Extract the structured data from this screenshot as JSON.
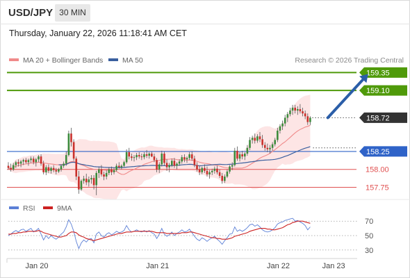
{
  "header": {
    "symbol": "USD/JPY",
    "timeframe": "30 MIN",
    "timestamp": "Thursday, January 22, 2026 11:18:41 AM CET"
  },
  "colors": {
    "ma20": "#f08a8a",
    "ma50": "#3a5f9e",
    "band_fill": "#fde2e2",
    "resistance": "#4f9a0a",
    "support_blue": "#2f63c8",
    "support_red": "#e05050",
    "up_candle": "#3c8b3c",
    "down_candle": "#c9302c",
    "rsi": "#5b7fd6",
    "rsi_ma": "#cc2222",
    "arrow": "#2b5ea8",
    "price_badge": "#333333"
  },
  "chart_data": [
    {
      "type": "candlestick",
      "legend": [
        {
          "name": "MA 20 + Bollinger Bands",
          "color": "#f08a8a"
        },
        {
          "name": "MA 50",
          "color": "#3a5f9e"
        }
      ],
      "watermark": "Research © 2026 Trading Central",
      "ylim": [
        157.6,
        159.47
      ],
      "x_labels": [
        {
          "label": "Jan 20",
          "index": 8
        },
        {
          "label": "Jan 21",
          "index": 56
        },
        {
          "label": "Jan 22",
          "index": 104
        },
        {
          "label": "Jan 23",
          "index": 126
        }
      ],
      "levels": [
        {
          "value": 159.35,
          "label": "159.35",
          "style": "green",
          "badge": true
        },
        {
          "value": 159.1,
          "label": "159.10",
          "style": "green",
          "badge": true
        },
        {
          "value": 158.72,
          "label": "158.72",
          "style": "current",
          "badge": true
        },
        {
          "value": 158.25,
          "label": "158.25",
          "style": "blue",
          "badge": true
        },
        {
          "value": 158.0,
          "label": "158.00",
          "style": "red",
          "badge": false
        },
        {
          "value": 157.75,
          "label": "157.75",
          "style": "red",
          "badge": false
        }
      ],
      "candles": [
        [
          158.05,
          158.1,
          158.0,
          158.02
        ],
        [
          158.02,
          158.08,
          157.97,
          158.0
        ],
        [
          158.0,
          158.09,
          157.98,
          158.06
        ],
        [
          158.06,
          158.12,
          158.02,
          158.1
        ],
        [
          158.1,
          158.14,
          158.04,
          158.08
        ],
        [
          158.08,
          158.13,
          158.03,
          158.11
        ],
        [
          158.11,
          158.15,
          158.06,
          158.13
        ],
        [
          158.13,
          158.16,
          158.08,
          158.1
        ],
        [
          158.1,
          158.15,
          158.05,
          158.13
        ],
        [
          158.13,
          158.18,
          158.09,
          158.15
        ],
        [
          158.15,
          158.18,
          158.07,
          158.1
        ],
        [
          158.1,
          158.16,
          158.04,
          158.14
        ],
        [
          158.14,
          158.2,
          158.1,
          158.18
        ],
        [
          158.18,
          158.21,
          158.05,
          158.08
        ],
        [
          158.08,
          158.12,
          157.93,
          157.96
        ],
        [
          157.96,
          158.06,
          157.92,
          158.03
        ],
        [
          158.03,
          158.07,
          157.95,
          157.98
        ],
        [
          157.98,
          158.04,
          157.94,
          158.02
        ],
        [
          158.02,
          158.06,
          157.96,
          157.99
        ],
        [
          157.99,
          158.02,
          157.93,
          157.97
        ],
        [
          157.97,
          158.02,
          157.95,
          158.0
        ],
        [
          158.0,
          158.07,
          157.97,
          158.05
        ],
        [
          158.05,
          158.11,
          158.02,
          158.08
        ],
        [
          158.08,
          158.25,
          158.05,
          158.2
        ],
        [
          158.2,
          158.54,
          158.18,
          158.5
        ],
        [
          158.5,
          158.58,
          158.32,
          158.38
        ],
        [
          158.38,
          158.42,
          158.12,
          158.15
        ],
        [
          158.15,
          158.18,
          157.85,
          157.9
        ],
        [
          157.9,
          157.98,
          157.66,
          157.72
        ],
        [
          157.72,
          157.86,
          157.7,
          157.84
        ],
        [
          157.84,
          157.91,
          157.8,
          157.87
        ],
        [
          157.87,
          157.94,
          157.78,
          157.82
        ],
        [
          157.82,
          157.9,
          157.76,
          157.86
        ],
        [
          157.86,
          157.92,
          157.8,
          157.88
        ],
        [
          157.88,
          157.92,
          157.72,
          157.78
        ],
        [
          157.78,
          157.98,
          157.64,
          157.95
        ],
        [
          157.95,
          158.03,
          157.88,
          158.0
        ],
        [
          158.0,
          158.06,
          157.9,
          157.93
        ],
        [
          157.93,
          157.97,
          157.85,
          157.9
        ],
        [
          157.9,
          157.99,
          157.86,
          157.95
        ],
        [
          157.95,
          158.03,
          157.92,
          158.0
        ],
        [
          158.0,
          158.04,
          157.92,
          157.96
        ],
        [
          157.96,
          158.02,
          157.93,
          157.99
        ],
        [
          157.99,
          158.08,
          157.97,
          158.05
        ],
        [
          158.05,
          158.1,
          158.01,
          158.03
        ],
        [
          158.03,
          158.07,
          158.0,
          158.05
        ],
        [
          158.05,
          158.12,
          158.03,
          158.1
        ],
        [
          158.1,
          158.28,
          158.08,
          158.24
        ],
        [
          158.24,
          158.3,
          158.14,
          158.18
        ],
        [
          158.18,
          158.22,
          158.12,
          158.16
        ],
        [
          158.16,
          158.2,
          158.11,
          158.17
        ],
        [
          158.17,
          158.23,
          158.13,
          158.2
        ],
        [
          158.2,
          158.24,
          158.15,
          158.18
        ],
        [
          158.18,
          158.22,
          158.13,
          158.17
        ],
        [
          158.17,
          158.24,
          158.14,
          158.21
        ],
        [
          158.21,
          158.27,
          158.16,
          158.19
        ],
        [
          158.19,
          158.24,
          158.15,
          158.22
        ],
        [
          158.22,
          158.25,
          158.17,
          158.18
        ],
        [
          158.18,
          158.22,
          158.1,
          158.13
        ],
        [
          158.13,
          158.16,
          157.96,
          158.0
        ],
        [
          158.0,
          158.1,
          157.95,
          158.07
        ],
        [
          158.07,
          158.26,
          158.04,
          158.22
        ],
        [
          158.22,
          158.25,
          158.05,
          158.09
        ],
        [
          158.09,
          158.14,
          157.98,
          158.03
        ],
        [
          158.03,
          158.09,
          157.96,
          158.06
        ],
        [
          158.06,
          158.15,
          158.03,
          158.12
        ],
        [
          158.12,
          158.16,
          158.02,
          158.05
        ],
        [
          158.05,
          158.1,
          158.0,
          158.08
        ],
        [
          158.08,
          158.14,
          158.05,
          158.11
        ],
        [
          158.11,
          158.2,
          158.08,
          158.17
        ],
        [
          158.17,
          158.21,
          158.1,
          158.14
        ],
        [
          158.14,
          158.18,
          158.09,
          158.16
        ],
        [
          158.16,
          158.24,
          158.13,
          158.21
        ],
        [
          158.21,
          158.25,
          158.12,
          158.15
        ],
        [
          158.15,
          158.19,
          158.03,
          158.06
        ],
        [
          158.06,
          158.1,
          157.97,
          158.0
        ],
        [
          158.0,
          158.05,
          157.92,
          157.96
        ],
        [
          157.96,
          158.04,
          157.93,
          158.02
        ],
        [
          158.02,
          158.07,
          157.95,
          157.98
        ],
        [
          157.98,
          158.04,
          157.9,
          157.93
        ],
        [
          157.93,
          157.99,
          157.87,
          157.96
        ],
        [
          157.96,
          158.01,
          157.92,
          157.98
        ],
        [
          157.98,
          158.04,
          157.94,
          158.01
        ],
        [
          158.01,
          158.05,
          157.93,
          157.96
        ],
        [
          157.96,
          158.0,
          157.88,
          157.91
        ],
        [
          157.91,
          157.95,
          157.8,
          157.84
        ],
        [
          157.84,
          157.93,
          157.81,
          157.9
        ],
        [
          157.9,
          158.0,
          157.88,
          157.97
        ],
        [
          157.97,
          158.06,
          157.94,
          158.04
        ],
        [
          158.04,
          158.1,
          157.99,
          158.06
        ],
        [
          158.06,
          158.3,
          158.04,
          158.26
        ],
        [
          158.26,
          158.32,
          158.12,
          158.15
        ],
        [
          158.15,
          158.24,
          158.11,
          158.21
        ],
        [
          158.21,
          158.26,
          158.14,
          158.18
        ],
        [
          158.18,
          158.24,
          158.13,
          158.22
        ],
        [
          158.22,
          158.34,
          158.19,
          158.3
        ],
        [
          158.3,
          158.45,
          158.27,
          158.41
        ],
        [
          158.41,
          158.47,
          158.36,
          158.44
        ],
        [
          158.44,
          158.5,
          158.36,
          158.4
        ],
        [
          158.4,
          158.49,
          158.37,
          158.46
        ],
        [
          158.46,
          158.52,
          158.38,
          158.42
        ],
        [
          158.42,
          158.48,
          158.3,
          158.34
        ],
        [
          158.34,
          158.38,
          158.26,
          158.3
        ],
        [
          158.3,
          158.36,
          158.24,
          158.28
        ],
        [
          158.28,
          158.34,
          158.22,
          158.3
        ],
        [
          158.3,
          158.38,
          158.26,
          158.35
        ],
        [
          158.35,
          158.44,
          158.32,
          158.41
        ],
        [
          158.41,
          158.58,
          158.38,
          158.54
        ],
        [
          158.54,
          158.63,
          158.5,
          158.6
        ],
        [
          158.6,
          158.68,
          158.55,
          158.64
        ],
        [
          158.64,
          158.76,
          158.6,
          158.72
        ],
        [
          158.72,
          158.8,
          158.66,
          158.77
        ],
        [
          158.77,
          158.86,
          158.74,
          158.82
        ],
        [
          158.82,
          158.9,
          158.76,
          158.86
        ],
        [
          158.86,
          158.9,
          158.78,
          158.82
        ],
        [
          158.82,
          158.88,
          158.76,
          158.84
        ],
        [
          158.84,
          158.91,
          158.78,
          158.81
        ],
        [
          158.81,
          158.86,
          158.74,
          158.78
        ],
        [
          158.78,
          158.82,
          158.7,
          158.74
        ],
        [
          158.74,
          158.78,
          158.62,
          158.66
        ],
        [
          158.66,
          158.74,
          158.62,
          158.72
        ]
      ],
      "arrow": {
        "from_index": 127,
        "from_value": 158.72,
        "to_index": 143,
        "to_value": 159.33
      }
    },
    {
      "type": "line",
      "legend": [
        {
          "name": "RSI",
          "color": "#5b7fd6"
        },
        {
          "name": "9MA",
          "color": "#cc2222"
        }
      ],
      "ylim": [
        24,
        76
      ],
      "y_ticks": [
        70,
        50,
        30
      ],
      "rsi": [
        50,
        52,
        55,
        57,
        55,
        58,
        59,
        56,
        58,
        60,
        55,
        57,
        60,
        52,
        44,
        50,
        46,
        50,
        47,
        45,
        48,
        52,
        55,
        62,
        72,
        66,
        56,
        42,
        32,
        40,
        44,
        41,
        45,
        46,
        40,
        52,
        55,
        50,
        48,
        52,
        54,
        51,
        53,
        56,
        54,
        55,
        57,
        64,
        58,
        55,
        56,
        58,
        56,
        55,
        57,
        55,
        57,
        54,
        52,
        46,
        52,
        60,
        52,
        49,
        51,
        55,
        50,
        53,
        55,
        58,
        55,
        56,
        59,
        54,
        49,
        45,
        43,
        47,
        45,
        42,
        45,
        47,
        49,
        45,
        42,
        38,
        43,
        47,
        52,
        53,
        62,
        56,
        58,
        56,
        58,
        61,
        65,
        66,
        63,
        65,
        62,
        58,
        56,
        55,
        56,
        58,
        61,
        66,
        68,
        69,
        71,
        72,
        73,
        74,
        70,
        71,
        69,
        67,
        64,
        58,
        62
      ],
      "ma": [
        52,
        52,
        53,
        53,
        54,
        54,
        55,
        55,
        56,
        56,
        56,
        56,
        57,
        56,
        54,
        53,
        52,
        51,
        50,
        49,
        48,
        48,
        49,
        50,
        53,
        55,
        55,
        54,
        51,
        49,
        48,
        46,
        45,
        44,
        43,
        44,
        45,
        46,
        47,
        48,
        49,
        50,
        51,
        52,
        53,
        53,
        54,
        55,
        55,
        55,
        56,
        56,
        56,
        56,
        56,
        56,
        56,
        56,
        55,
        54,
        54,
        54,
        54,
        53,
        53,
        53,
        53,
        53,
        53,
        54,
        54,
        54,
        55,
        55,
        54,
        53,
        52,
        51,
        50,
        49,
        48,
        47,
        47,
        46,
        46,
        45,
        45,
        45,
        46,
        47,
        49,
        50,
        51,
        52,
        53,
        54,
        56,
        57,
        58,
        59,
        60,
        60,
        60,
        59,
        59,
        58,
        58,
        59,
        60,
        61,
        63,
        65,
        66,
        68,
        69,
        70,
        70,
        70,
        69,
        68,
        67
      ]
    }
  ]
}
